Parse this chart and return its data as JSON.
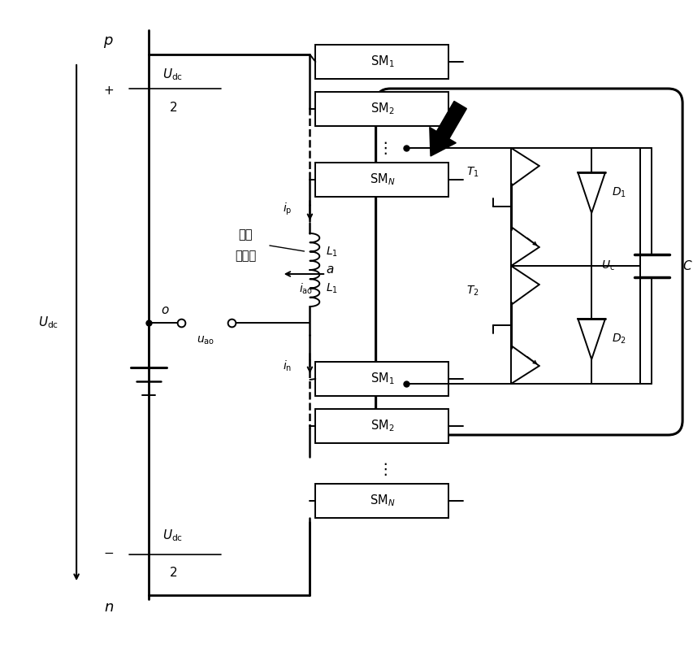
{
  "bg_color": "#ffffff",
  "line_color": "#000000",
  "fig_width": 8.54,
  "fig_height": 7.97,
  "dpi": 100
}
